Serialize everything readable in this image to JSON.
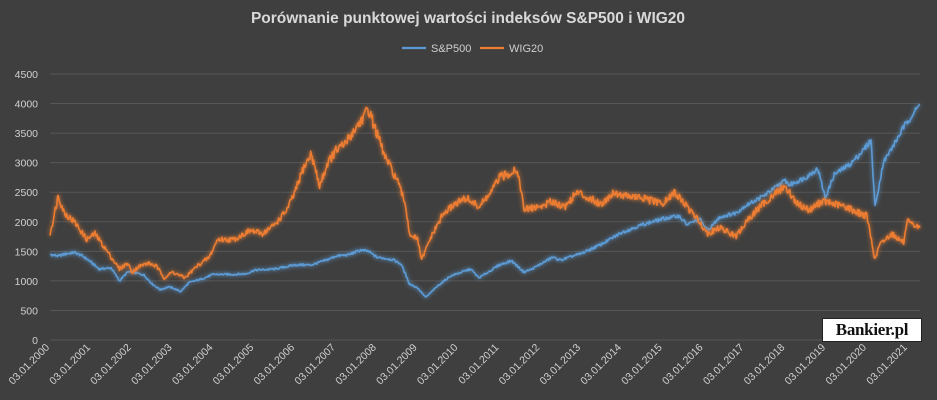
{
  "chart_data": {
    "type": "line",
    "title": "Porównanie punktowej wartości indeksów S&P500 i WIG20",
    "legend_position": "top-center",
    "grid": true,
    "ylim": [
      0,
      4500
    ],
    "yticks": [
      "0",
      "500",
      "1000",
      "1500",
      "2000",
      "2500",
      "3000",
      "3500",
      "4000",
      "4500"
    ],
    "xlim": [
      2000.0,
      2021.3
    ],
    "xticks": [
      "03.01.2000",
      "03.01.2001",
      "03.01.2002",
      "03.01.2003",
      "03.01.2004",
      "03.01.2005",
      "03.01.2006",
      "03.01.2007",
      "03.01.2008",
      "03.01.2009",
      "03.01.2010",
      "03.01.2011",
      "03.01.2012",
      "03.01.2013",
      "03.01.2014",
      "03.01.2015",
      "03.01.2016",
      "03.01.2017",
      "03.01.2018",
      "03.01.2019",
      "03.01.2020",
      "03.01.2021"
    ],
    "series": [
      {
        "name": "S&P500",
        "color": "#5b9bd5",
        "points": [
          [
            2000.0,
            1450
          ],
          [
            2000.2,
            1420
          ],
          [
            2000.4,
            1460
          ],
          [
            2000.6,
            1480
          ],
          [
            2000.8,
            1420
          ],
          [
            2001.0,
            1320
          ],
          [
            2001.2,
            1200
          ],
          [
            2001.5,
            1220
          ],
          [
            2001.7,
            1000
          ],
          [
            2001.9,
            1150
          ],
          [
            2002.0,
            1150
          ],
          [
            2002.3,
            1100
          ],
          [
            2002.5,
            950
          ],
          [
            2002.7,
            850
          ],
          [
            2002.9,
            900
          ],
          [
            2003.0,
            880
          ],
          [
            2003.2,
            820
          ],
          [
            2003.4,
            970
          ],
          [
            2003.7,
            1030
          ],
          [
            2004.0,
            1110
          ],
          [
            2004.5,
            1110
          ],
          [
            2004.8,
            1120
          ],
          [
            2005.0,
            1180
          ],
          [
            2005.5,
            1200
          ],
          [
            2006.0,
            1270
          ],
          [
            2006.4,
            1270
          ],
          [
            2006.8,
            1360
          ],
          [
            2007.0,
            1420
          ],
          [
            2007.3,
            1440
          ],
          [
            2007.6,
            1520
          ],
          [
            2007.8,
            1500
          ],
          [
            2008.0,
            1400
          ],
          [
            2008.4,
            1360
          ],
          [
            2008.6,
            1280
          ],
          [
            2008.8,
            950
          ],
          [
            2009.0,
            880
          ],
          [
            2009.2,
            720
          ],
          [
            2009.5,
            920
          ],
          [
            2009.8,
            1080
          ],
          [
            2010.0,
            1130
          ],
          [
            2010.3,
            1200
          ],
          [
            2010.5,
            1050
          ],
          [
            2010.8,
            1180
          ],
          [
            2011.0,
            1270
          ],
          [
            2011.3,
            1340
          ],
          [
            2011.6,
            1150
          ],
          [
            2011.8,
            1200
          ],
          [
            2012.0,
            1280
          ],
          [
            2012.3,
            1400
          ],
          [
            2012.5,
            1350
          ],
          [
            2012.8,
            1420
          ],
          [
            2013.0,
            1460
          ],
          [
            2013.5,
            1620
          ],
          [
            2014.0,
            1820
          ],
          [
            2014.5,
            1950
          ],
          [
            2015.0,
            2050
          ],
          [
            2015.4,
            2100
          ],
          [
            2015.6,
            1950
          ],
          [
            2015.9,
            2050
          ],
          [
            2016.0,
            1950
          ],
          [
            2016.1,
            1850
          ],
          [
            2016.4,
            2080
          ],
          [
            2016.8,
            2150
          ],
          [
            2017.0,
            2260
          ],
          [
            2017.5,
            2450
          ],
          [
            2018.0,
            2700
          ],
          [
            2018.1,
            2620
          ],
          [
            2018.5,
            2750
          ],
          [
            2018.8,
            2900
          ],
          [
            2018.98,
            2400
          ],
          [
            2019.2,
            2800
          ],
          [
            2019.6,
            2980
          ],
          [
            2019.9,
            3200
          ],
          [
            2020.1,
            3380
          ],
          [
            2020.2,
            2250
          ],
          [
            2020.4,
            3000
          ],
          [
            2020.7,
            3350
          ],
          [
            2020.9,
            3600
          ],
          [
            2021.1,
            3800
          ],
          [
            2021.3,
            3980
          ]
        ]
      },
      {
        "name": "WIG20",
        "color": "#ed7d31",
        "points": [
          [
            2000.0,
            1800
          ],
          [
            2000.1,
            2100
          ],
          [
            2000.2,
            2450
          ],
          [
            2000.35,
            2150
          ],
          [
            2000.6,
            2000
          ],
          [
            2000.9,
            1700
          ],
          [
            2001.1,
            1800
          ],
          [
            2001.4,
            1500
          ],
          [
            2001.7,
            1200
          ],
          [
            2001.9,
            1300
          ],
          [
            2002.0,
            1150
          ],
          [
            2002.2,
            1250
          ],
          [
            2002.4,
            1300
          ],
          [
            2002.6,
            1250
          ],
          [
            2002.8,
            1050
          ],
          [
            2003.0,
            1150
          ],
          [
            2003.3,
            1050
          ],
          [
            2003.6,
            1250
          ],
          [
            2003.9,
            1400
          ],
          [
            2004.1,
            1700
          ],
          [
            2004.5,
            1700
          ],
          [
            2004.9,
            1850
          ],
          [
            2005.2,
            1800
          ],
          [
            2005.5,
            1950
          ],
          [
            2005.8,
            2200
          ],
          [
            2006.0,
            2500
          ],
          [
            2006.2,
            2900
          ],
          [
            2006.4,
            3150
          ],
          [
            2006.6,
            2600
          ],
          [
            2006.8,
            3000
          ],
          [
            2007.0,
            3200
          ],
          [
            2007.2,
            3300
          ],
          [
            2007.5,
            3600
          ],
          [
            2007.8,
            3900
          ],
          [
            2008.0,
            3500
          ],
          [
            2008.2,
            3100
          ],
          [
            2008.5,
            2700
          ],
          [
            2008.7,
            2300
          ],
          [
            2008.8,
            1800
          ],
          [
            2009.0,
            1700
          ],
          [
            2009.1,
            1350
          ],
          [
            2009.3,
            1700
          ],
          [
            2009.6,
            2100
          ],
          [
            2009.9,
            2300
          ],
          [
            2010.2,
            2400
          ],
          [
            2010.5,
            2250
          ],
          [
            2010.8,
            2500
          ],
          [
            2011.0,
            2750
          ],
          [
            2011.2,
            2800
          ],
          [
            2011.4,
            2900
          ],
          [
            2011.5,
            2700
          ],
          [
            2011.6,
            2200
          ],
          [
            2011.9,
            2250
          ],
          [
            2012.0,
            2250
          ],
          [
            2012.3,
            2350
          ],
          [
            2012.6,
            2250
          ],
          [
            2012.9,
            2500
          ],
          [
            2013.2,
            2400
          ],
          [
            2013.5,
            2300
          ],
          [
            2013.8,
            2500
          ],
          [
            2014.0,
            2450
          ],
          [
            2014.5,
            2400
          ],
          [
            2015.0,
            2300
          ],
          [
            2015.3,
            2500
          ],
          [
            2015.6,
            2250
          ],
          [
            2015.9,
            2000
          ],
          [
            2016.1,
            1800
          ],
          [
            2016.4,
            1900
          ],
          [
            2016.8,
            1750
          ],
          [
            2017.0,
            1950
          ],
          [
            2017.3,
            2200
          ],
          [
            2017.7,
            2450
          ],
          [
            2018.0,
            2600
          ],
          [
            2018.3,
            2300
          ],
          [
            2018.6,
            2200
          ],
          [
            2018.9,
            2350
          ],
          [
            2019.2,
            2300
          ],
          [
            2019.5,
            2250
          ],
          [
            2019.8,
            2150
          ],
          [
            2020.0,
            2100
          ],
          [
            2020.2,
            1350
          ],
          [
            2020.3,
            1600
          ],
          [
            2020.6,
            1800
          ],
          [
            2020.9,
            1650
          ],
          [
            2021.0,
            2000
          ],
          [
            2021.1,
            1950
          ],
          [
            2021.3,
            1900
          ]
        ]
      }
    ]
  },
  "logo": {
    "text": "Bankier.pl"
  }
}
